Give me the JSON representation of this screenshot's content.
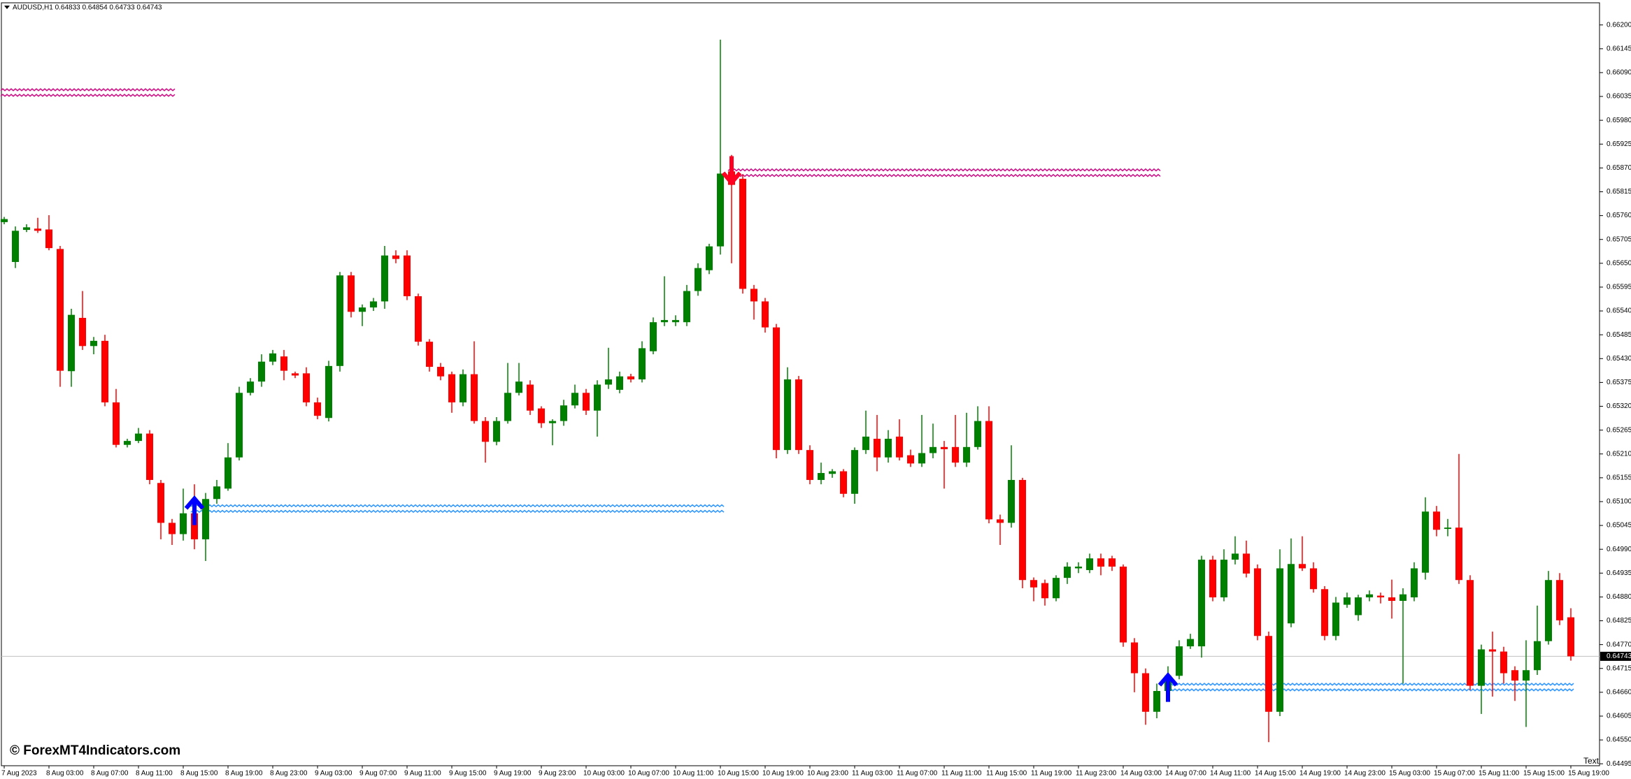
{
  "chart_data": {
    "type": "candlestick",
    "title": "AUDUSD,H1  0.64833 0.64854 0.64733 0.64743",
    "watermark": "© ForexMT4Indicators.com",
    "corner_text": "Text",
    "up_color": "#008000",
    "down_color": "#ff0000",
    "grid": false,
    "ylim": [
      0.644905,
      0.662503
    ],
    "yticks": [
      {
        "value": 0.662,
        "label": "0.66200"
      },
      0.66145,
      {
        "value": 0.6609,
        "label": "0.66090"
      },
      0.66035,
      {
        "value": 0.6598,
        "label": "0.65980"
      },
      0.65925,
      {
        "value": 0.6587,
        "label": "0.65870"
      },
      0.65815,
      {
        "value": 0.6576,
        "label": "0.65760"
      },
      0.65705,
      {
        "value": 0.6565,
        "label": "0.65650"
      },
      0.65595,
      {
        "value": 0.6554,
        "label": "0.65540"
      },
      0.65485,
      {
        "value": 0.6543,
        "label": "0.65430"
      },
      0.65375,
      {
        "value": 0.6532,
        "label": "0.65320"
      },
      0.65265,
      {
        "value": 0.6521,
        "label": "0.65210"
      },
      0.65155,
      {
        "value": 0.651,
        "label": "0.65100"
      },
      0.65045,
      {
        "value": 0.6499,
        "label": "0.64990"
      },
      0.64935,
      {
        "value": 0.6488,
        "label": "0.64880"
      },
      0.64825,
      {
        "value": 0.6477,
        "label": "0.64770"
      },
      0.64715,
      {
        "value": 0.6466,
        "label": "0.64660"
      },
      0.64605,
      {
        "value": 0.6455,
        "label": "0.64550"
      },
      0.64495
    ],
    "categories": [
      "7 Aug 2023",
      null,
      null,
      null,
      "8 Aug 03:00",
      null,
      null,
      null,
      "8 Aug 07:00",
      null,
      null,
      null,
      "8 Aug 11:00",
      null,
      null,
      null,
      "8 Aug 15:00",
      null,
      null,
      null,
      "8 Aug 19:00",
      null,
      null,
      null,
      "8 Aug 23:00",
      null,
      null,
      null,
      "9 Aug 03:00",
      null,
      null,
      null,
      "9 Aug 07:00",
      null,
      null,
      null,
      "9 Aug 11:00",
      null,
      null,
      null,
      "9 Aug 15:00",
      null,
      null,
      null,
      "9 Aug 19:00",
      null,
      null,
      null,
      "9 Aug 23:00",
      null,
      null,
      null,
      "10 Aug 03:00",
      null,
      null,
      null,
      "10 Aug 07:00",
      null,
      null,
      null,
      "10 Aug 11:00",
      null,
      null,
      null,
      "10 Aug 15:00",
      null,
      null,
      null,
      "10 Aug 19:00",
      null,
      null,
      null,
      "10 Aug 23:00",
      null,
      null,
      null,
      "11 Aug 03:00",
      null,
      null,
      null,
      "11 Aug 07:00",
      null,
      null,
      null,
      "11 Aug 11:00",
      null,
      null,
      null,
      "11 Aug 15:00",
      null,
      null,
      null,
      "11 Aug 19:00",
      null,
      null,
      null,
      "11 Aug 23:00",
      null,
      null,
      null,
      "14 Aug 03:00",
      null,
      null,
      null,
      "14 Aug 07:00",
      null,
      null,
      null,
      "14 Aug 11:00",
      null,
      null,
      null,
      "14 Aug 15:00",
      null,
      null,
      null,
      "14 Aug 19:00",
      null,
      null,
      null,
      "14 Aug 23:00",
      null,
      null,
      null,
      "15 Aug 03:00",
      null,
      null,
      null,
      "15 Aug 07:00",
      null,
      null,
      null,
      "15 Aug 11:00",
      null,
      null,
      null,
      "15 Aug 15:00",
      null,
      null,
      null,
      "15 Aug 19:00"
    ],
    "open": [
      0.65745,
      0.65653,
      0.65727,
      0.6573,
      0.65728,
      0.65683,
      0.65401,
      0.65524,
      0.65459,
      0.65471,
      0.65329,
      0.65231,
      0.6524,
      0.65257,
      0.65143,
      0.65051,
      0.65025,
      0.65073,
      0.65013,
      0.65106,
      0.6513,
      0.65202,
      0.65351,
      0.65377,
      0.65423,
      0.65435,
      0.65396,
      0.65396,
      0.65329,
      0.65293,
      0.65413,
      0.65622,
      0.65538,
      0.65548,
      0.65562,
      0.65668,
      0.65668,
      0.65574,
      0.65469,
      0.65411,
      0.65394,
      0.65329,
      0.65394,
      0.65286,
      0.65238,
      0.65286,
      0.65351,
      0.6537,
      0.65315,
      0.65281,
      0.65286,
      0.65322,
      0.65351,
      0.6531,
      0.6537,
      0.65358,
      0.65389,
      0.65382,
      0.65447,
      0.65514,
      0.65514,
      0.65514,
      0.65586,
      0.65634,
      0.65689,
      0.65862,
      0.65845,
      0.65591,
      0.65562,
      0.65502,
      0.65219,
      0.65382,
      0.65219,
      0.6515,
      0.65164,
      0.6517,
      0.65118,
      0.65219,
      0.65245,
      0.65202,
      0.6525,
      0.65207,
      0.65188,
      0.65212,
      0.65226,
      0.65226,
      0.6519,
      0.65226,
      0.65286,
      0.65059,
      0.65051,
      0.6515,
      0.64919,
      0.64912,
      0.64877,
      0.64924,
      0.64946,
      0.64942,
      0.64969,
      0.64969,
      0.6495,
      0.64775,
      0.64704,
      0.64615,
      0.64663,
      0.64698,
      0.64766,
      0.64766,
      0.64966,
      0.64879,
      0.64966,
      0.6498,
      0.64946,
      0.6479,
      0.64615,
      0.64819,
      0.64956,
      0.64946,
      0.64898,
      0.6479,
      0.64862,
      0.64838,
      0.64879,
      0.64883,
      0.64879,
      0.64871,
      0.64879,
      0.64936,
      0.65077,
      0.65037,
      0.6504,
      0.64919,
      0.64675,
      0.64759,
      0.64754,
      0.64711,
      0.64687,
      0.64711,
      0.64778,
      0.64919,
      0.64833
    ],
    "high": [
      0.65757,
      0.65735,
      0.6574,
      0.65755,
      0.65761,
      0.6569,
      0.65545,
      0.65586,
      0.6548,
      0.65485,
      0.6536,
      0.65245,
      0.6527,
      0.65265,
      0.6515,
      0.6506,
      0.6513,
      0.6514,
      0.6512,
      0.6515,
      0.65235,
      0.65365,
      0.65385,
      0.6544,
      0.6545,
      0.6545,
      0.654,
      0.6541,
      0.6534,
      0.65425,
      0.6563,
      0.6563,
      0.65555,
      0.6557,
      0.6569,
      0.6568,
      0.6568,
      0.6558,
      0.65475,
      0.6542,
      0.654,
      0.65405,
      0.6547,
      0.65295,
      0.65295,
      0.6542,
      0.6542,
      0.6538,
      0.6532,
      0.6529,
      0.65335,
      0.6537,
      0.6536,
      0.6538,
      0.65455,
      0.654,
      0.65395,
      0.6547,
      0.65525,
      0.6562,
      0.6553,
      0.656,
      0.6565,
      0.65695,
      0.66166,
      0.659,
      0.65855,
      0.656,
      0.6557,
      0.6551,
      0.6541,
      0.6539,
      0.6523,
      0.6519,
      0.65175,
      0.65175,
      0.65225,
      0.6531,
      0.653,
      0.65265,
      0.6529,
      0.6522,
      0.653,
      0.6528,
      0.6524,
      0.653,
      0.65305,
      0.6532,
      0.6532,
      0.6507,
      0.6523,
      0.65155,
      0.64925,
      0.6492,
      0.6493,
      0.6496,
      0.6496,
      0.6498,
      0.6498,
      0.64975,
      0.64955,
      0.64785,
      0.64715,
      0.6468,
      0.6472,
      0.6478,
      0.64795,
      0.64975,
      0.64975,
      0.6499,
      0.6502,
      0.6501,
      0.64955,
      0.648,
      0.6499,
      0.65015,
      0.6502,
      0.6496,
      0.64905,
      0.6488,
      0.6489,
      0.64885,
      0.64895,
      0.6489,
      0.6492,
      0.649,
      0.6496,
      0.6511,
      0.6509,
      0.6506,
      0.6521,
      0.6493,
      0.6477,
      0.648,
      0.64765,
      0.6472,
      0.6478,
      0.6486,
      0.6494,
      0.64935,
      0.64854
    ],
    "low": [
      0.6574,
      0.65639,
      0.65722,
      0.6572,
      0.6568,
      0.65365,
      0.65365,
      0.6545,
      0.6544,
      0.6532,
      0.65225,
      0.65225,
      0.65235,
      0.6514,
      0.65013,
      0.65,
      0.6501,
      0.6499,
      0.64963,
      0.65095,
      0.65125,
      0.65195,
      0.65345,
      0.65365,
      0.65415,
      0.6538,
      0.65385,
      0.6532,
      0.6529,
      0.65285,
      0.654,
      0.65525,
      0.65505,
      0.6554,
      0.65545,
      0.6565,
      0.65565,
      0.6546,
      0.654,
      0.6538,
      0.65305,
      0.6532,
      0.6528,
      0.6519,
      0.6523,
      0.6528,
      0.65345,
      0.653,
      0.6527,
      0.6523,
      0.65275,
      0.65315,
      0.653,
      0.6525,
      0.6536,
      0.6535,
      0.65375,
      0.65375,
      0.6544,
      0.65505,
      0.65505,
      0.65505,
      0.65575,
      0.65625,
      0.6567,
      0.6565,
      0.6558,
      0.6552,
      0.6549,
      0.652,
      0.6521,
      0.6521,
      0.6514,
      0.6514,
      0.65155,
      0.6511,
      0.65095,
      0.6521,
      0.6517,
      0.6519,
      0.65195,
      0.6518,
      0.6518,
      0.652,
      0.6513,
      0.6518,
      0.6518,
      0.6522,
      0.6505,
      0.65,
      0.6504,
      0.649,
      0.6487,
      0.6486,
      0.6487,
      0.6491,
      0.64935,
      0.64935,
      0.6493,
      0.6494,
      0.64765,
      0.6466,
      0.64585,
      0.646,
      0.6464,
      0.6469,
      0.6476,
      0.6474,
      0.6487,
      0.6487,
      0.64955,
      0.64925,
      0.6478,
      0.64545,
      0.64605,
      0.6481,
      0.6494,
      0.6489,
      0.6478,
      0.6478,
      0.64855,
      0.64825,
      0.6487,
      0.64865,
      0.6483,
      0.6468,
      0.6487,
      0.6492,
      0.6502,
      0.6502,
      0.6491,
      0.64665,
      0.6461,
      0.6465,
      0.6468,
      0.6464,
      0.6458,
      0.647,
      0.6477,
      0.64815,
      0.64733
    ],
    "close": [
      0.65752,
      0.65725,
      0.65733,
      0.65725,
      0.65685,
      0.65402,
      0.65531,
      0.65459,
      0.65471,
      0.65329,
      0.65231,
      0.6524,
      0.65257,
      0.6515,
      0.65051,
      0.65025,
      0.65073,
      0.65013,
      0.65106,
      0.65135,
      0.65202,
      0.65351,
      0.65377,
      0.65423,
      0.65442,
      0.65402,
      0.65391,
      0.65329,
      0.65298,
      0.65413,
      0.65622,
      0.65538,
      0.65548,
      0.65562,
      0.65668,
      0.6566,
      0.65574,
      0.65469,
      0.65411,
      0.65389,
      0.65329,
      0.65394,
      0.65286,
      0.65238,
      0.65286,
      0.65351,
      0.65377,
      0.6531,
      0.65281,
      0.65286,
      0.65322,
      0.65351,
      0.6531,
      0.6537,
      0.65382,
      0.65389,
      0.65382,
      0.65454,
      0.65514,
      0.65519,
      0.65519,
      0.65586,
      0.65639,
      0.65689,
      0.65857,
      0.65831,
      0.65591,
      0.65562,
      0.65502,
      0.65219,
      0.65382,
      0.65219,
      0.6515,
      0.65166,
      0.6517,
      0.65118,
      0.65219,
      0.6525,
      0.65202,
      0.65245,
      0.65202,
      0.65188,
      0.65212,
      0.65226,
      0.65221,
      0.6519,
      0.65226,
      0.65286,
      0.65059,
      0.65051,
      0.6515,
      0.64919,
      0.64902,
      0.64877,
      0.64924,
      0.6495,
      0.6495,
      0.64969,
      0.6495,
      0.6495,
      0.64775,
      0.64704,
      0.64615,
      0.64663,
      0.64698,
      0.64766,
      0.64783,
      0.64966,
      0.64879,
      0.64966,
      0.6498,
      0.64934,
      0.6479,
      0.64615,
      0.64946,
      0.64956,
      0.64946,
      0.64898,
      0.6479,
      0.64867,
      0.64879,
      0.64879,
      0.64886,
      0.64879,
      0.64871,
      0.64886,
      0.64946,
      0.65077,
      0.65035,
      0.6504,
      0.64919,
      0.64675,
      0.64759,
      0.64754,
      0.64704,
      0.64687,
      0.64711,
      0.64778,
      0.64919,
      0.64826,
      0.64743
    ],
    "zones": [
      {
        "from": 0,
        "to": 15,
        "price": 0.66042,
        "color": "#cc1188"
      },
      {
        "from": 65,
        "to": 103,
        "price": 0.65857,
        "color": "#cc1188"
      },
      {
        "from": 17,
        "to": 64,
        "price": 0.65082,
        "color": "#3399ff"
      },
      {
        "from": 104,
        "to": 140,
        "price": 0.6467,
        "color": "#3399ff"
      }
    ],
    "signals": [
      {
        "bar": 17,
        "price": 0.65107,
        "direction": "up",
        "color": "#0000ff"
      },
      {
        "bar": 65,
        "price": 0.65836,
        "direction": "down",
        "color": "#ff0022"
      },
      {
        "bar": 104,
        "price": 0.64699,
        "direction": "up",
        "color": "#0000ff"
      }
    ]
  }
}
